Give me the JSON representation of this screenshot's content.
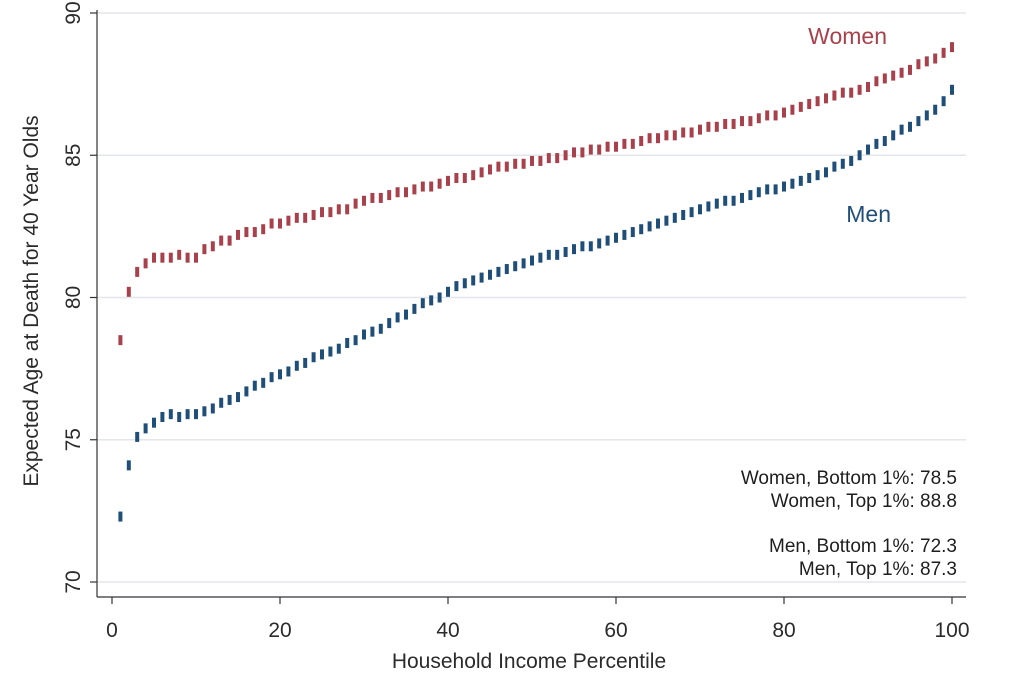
{
  "chart_data": {
    "type": "scatter",
    "xlabel": "Household Income Percentile",
    "ylabel": "Expected Age at Death for 40 Year Olds",
    "xlim": [
      0,
      100
    ],
    "ylim": [
      70,
      90
    ],
    "xticks": [
      0,
      20,
      40,
      60,
      80,
      100
    ],
    "yticks": [
      70,
      75,
      80,
      85,
      90
    ],
    "grid": "horizontal",
    "colors": {
      "women": "#a8414b",
      "men": "#1f4e79"
    },
    "annotations": {
      "women_bottom": "Women, Bottom 1%: 78.5",
      "women_top": "Women, Top 1%: 88.8",
      "men_bottom": "Men, Bottom 1%: 72.3",
      "men_top": "Men, Top 1%: 87.3"
    },
    "x": [
      1,
      2,
      3,
      4,
      5,
      6,
      7,
      8,
      9,
      10,
      11,
      12,
      13,
      14,
      15,
      16,
      17,
      18,
      19,
      20,
      21,
      22,
      23,
      24,
      25,
      26,
      27,
      28,
      29,
      30,
      31,
      32,
      33,
      34,
      35,
      36,
      37,
      38,
      39,
      40,
      41,
      42,
      43,
      44,
      45,
      46,
      47,
      48,
      49,
      50,
      51,
      52,
      53,
      54,
      55,
      56,
      57,
      58,
      59,
      60,
      61,
      62,
      63,
      64,
      65,
      66,
      67,
      68,
      69,
      70,
      71,
      72,
      73,
      74,
      75,
      76,
      77,
      78,
      79,
      80,
      81,
      82,
      83,
      84,
      85,
      86,
      87,
      88,
      89,
      90,
      91,
      92,
      93,
      94,
      95,
      96,
      97,
      98,
      99,
      100
    ],
    "series": [
      {
        "name": "Women",
        "values": [
          78.5,
          80.2,
          80.9,
          81.2,
          81.4,
          81.4,
          81.4,
          81.5,
          81.4,
          81.4,
          81.7,
          81.8,
          82.0,
          82.0,
          82.2,
          82.3,
          82.3,
          82.4,
          82.6,
          82.6,
          82.7,
          82.8,
          82.8,
          82.9,
          83.0,
          83.0,
          83.1,
          83.1,
          83.3,
          83.4,
          83.5,
          83.5,
          83.6,
          83.7,
          83.7,
          83.8,
          83.9,
          83.9,
          84.0,
          84.1,
          84.2,
          84.2,
          84.3,
          84.4,
          84.5,
          84.6,
          84.6,
          84.7,
          84.7,
          84.8,
          84.8,
          84.9,
          84.9,
          85.0,
          85.1,
          85.1,
          85.2,
          85.2,
          85.3,
          85.3,
          85.4,
          85.4,
          85.5,
          85.6,
          85.6,
          85.7,
          85.7,
          85.8,
          85.8,
          85.9,
          86.0,
          86.0,
          86.1,
          86.1,
          86.2,
          86.2,
          86.3,
          86.4,
          86.4,
          86.5,
          86.6,
          86.7,
          86.8,
          86.9,
          87.0,
          87.1,
          87.2,
          87.2,
          87.3,
          87.4,
          87.6,
          87.7,
          87.8,
          87.9,
          88.0,
          88.2,
          88.3,
          88.4,
          88.6,
          88.8
        ]
      },
      {
        "name": "Men",
        "values": [
          72.3,
          74.1,
          75.1,
          75.4,
          75.6,
          75.8,
          75.9,
          75.8,
          75.9,
          75.9,
          76.0,
          76.1,
          76.3,
          76.4,
          76.5,
          76.7,
          76.9,
          77.0,
          77.2,
          77.3,
          77.4,
          77.6,
          77.7,
          77.9,
          78.0,
          78.1,
          78.2,
          78.4,
          78.5,
          78.7,
          78.8,
          78.9,
          79.1,
          79.3,
          79.4,
          79.6,
          79.8,
          79.9,
          80.0,
          80.2,
          80.4,
          80.5,
          80.6,
          80.7,
          80.8,
          80.9,
          81.0,
          81.1,
          81.2,
          81.3,
          81.4,
          81.5,
          81.5,
          81.6,
          81.7,
          81.8,
          81.8,
          81.9,
          82.0,
          82.1,
          82.2,
          82.3,
          82.4,
          82.5,
          82.6,
          82.7,
          82.8,
          82.9,
          83.0,
          83.1,
          83.2,
          83.3,
          83.4,
          83.4,
          83.5,
          83.6,
          83.7,
          83.8,
          83.8,
          83.9,
          84.0,
          84.1,
          84.2,
          84.3,
          84.4,
          84.6,
          84.7,
          84.8,
          85.0,
          85.2,
          85.4,
          85.5,
          85.7,
          85.9,
          86.0,
          86.2,
          86.4,
          86.6,
          86.9,
          87.3
        ]
      }
    ]
  }
}
